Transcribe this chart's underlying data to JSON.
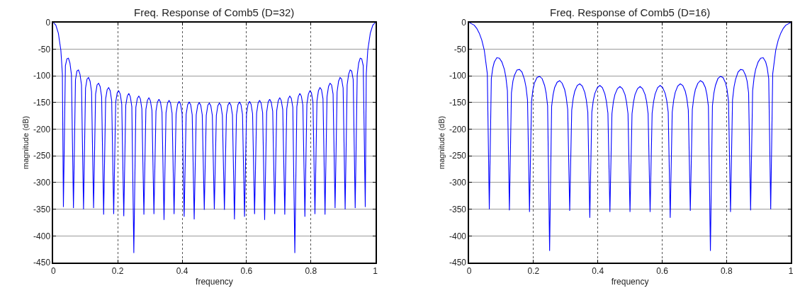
{
  "chart_data": [
    {
      "type": "line",
      "title": "Freq. Response of Comb5 (D=32)",
      "xlabel": "frequency",
      "ylabel": "magnitude (dB)",
      "xlim": [
        0,
        1
      ],
      "xticks": [
        0,
        0.2,
        0.4,
        0.6,
        0.8,
        1
      ],
      "ylim": [
        -450,
        0
      ],
      "yticks": [
        -450,
        -400,
        -350,
        -300,
        -250,
        -200,
        -150,
        -100,
        -50,
        0
      ],
      "grid": true,
      "x": [
        0,
        0.0078,
        0.0156,
        0.0234,
        0.0281,
        0.0313,
        0.0375,
        0.0422,
        0.0469,
        0.0516,
        0.0563,
        0.0625,
        0.0688,
        0.0734,
        0.0781,
        0.0828,
        0.0875,
        0.0938,
        0.1,
        0.1047,
        0.1094,
        0.1141,
        0.1188,
        0.125,
        0.1313,
        0.1359,
        0.1406,
        0.1453,
        0.15,
        0.1563,
        0.1625,
        0.1672,
        0.1719,
        0.1766,
        0.1813,
        0.1875,
        0.1938,
        0.1984,
        0.2031,
        0.2078,
        0.2125,
        0.2188,
        0.225,
        0.2297,
        0.2344,
        0.2391,
        0.2438,
        0.25,
        0.2563,
        0.2609,
        0.2656,
        0.2703,
        0.275,
        0.2813,
        0.2875,
        0.2922,
        0.2969,
        0.3016,
        0.3063,
        0.3125,
        0.3188,
        0.3234,
        0.3281,
        0.3328,
        0.3375,
        0.3438,
        0.35,
        0.3547,
        0.3594,
        0.3641,
        0.3688,
        0.375,
        0.3813,
        0.3859,
        0.3906,
        0.3953,
        0.4,
        0.4063,
        0.4125,
        0.4172,
        0.4219,
        0.4266,
        0.4313,
        0.4375,
        0.4438,
        0.4484,
        0.4531,
        0.4578,
        0.4625,
        0.4688,
        0.475,
        0.4797,
        0.4844,
        0.4891,
        0.4938,
        0.5,
        0.5063,
        0.5109,
        0.5156,
        0.5203,
        0.525,
        0.5313,
        0.5375,
        0.5422,
        0.5469,
        0.5516,
        0.5563,
        0.5625,
        0.5688,
        0.5734,
        0.5781,
        0.5828,
        0.5875,
        0.5938,
        0.6,
        0.6047,
        0.6094,
        0.6141,
        0.6188,
        0.625,
        0.6313,
        0.6359,
        0.6406,
        0.6453,
        0.65,
        0.6563,
        0.6625,
        0.6672,
        0.6719,
        0.6766,
        0.6813,
        0.6875,
        0.6938,
        0.6984,
        0.7031,
        0.7078,
        0.7125,
        0.7188,
        0.725,
        0.7297,
        0.7344,
        0.7391,
        0.7438,
        0.75,
        0.7563,
        0.7609,
        0.7656,
        0.7703,
        0.775,
        0.7813,
        0.7875,
        0.7922,
        0.7969,
        0.8016,
        0.8063,
        0.8125,
        0.8188,
        0.8234,
        0.8281,
        0.8328,
        0.8375,
        0.8438,
        0.85,
        0.8547,
        0.8594,
        0.8641,
        0.8688,
        0.875,
        0.8813,
        0.8859,
        0.8906,
        0.8953,
        0.9,
        0.9063,
        0.9125,
        0.9172,
        0.9219,
        0.9266,
        0.9313,
        0.9375,
        0.9438,
        0.9484,
        0.9531,
        0.9578,
        0.9625,
        0.9688,
        0.9719,
        0.9766,
        0.9844,
        0.9922,
        1
      ],
      "series": [
        {
          "color": "#0000ff",
          "values": [
            0,
            -5,
            -20,
            -52,
            -96,
            -346,
            -81,
            -68,
            -67,
            -76,
            -98,
            -348,
            -107,
            -91,
            -89,
            -97,
            -117,
            -350,
            -123,
            -106,
            -103,
            -110,
            -130,
            -348,
            -134,
            -117,
            -114,
            -120,
            -139,
            -360,
            -143,
            -126,
            -122,
            -128,
            -147,
            -359,
            -149,
            -132,
            -128,
            -134,
            -153,
            -363,
            -155,
            -138,
            -133,
            -139,
            -158,
            -432,
            -159,
            -142,
            -138,
            -143,
            -162,
            -360,
            -163,
            -146,
            -141,
            -147,
            -165,
            -359,
            -166,
            -149,
            -144,
            -149,
            -168,
            -370,
            -169,
            -151,
            -146,
            -151,
            -170,
            -359,
            -171,
            -153,
            -148,
            -153,
            -171,
            -364,
            -172,
            -154,
            -149,
            -154,
            -173,
            -369,
            -173,
            -155,
            -150,
            -155,
            -173,
            -351,
            -174,
            -155,
            -151,
            -156,
            -174,
            -350,
            -174,
            -156,
            -151,
            -155,
            -174,
            -351,
            -173,
            -155,
            -150,
            -155,
            -173,
            -369,
            -173,
            -154,
            -149,
            -154,
            -172,
            -364,
            -171,
            -153,
            -148,
            -153,
            -171,
            -359,
            -170,
            -151,
            -146,
            -151,
            -169,
            -370,
            -168,
            -149,
            -144,
            -149,
            -166,
            -359,
            -165,
            -147,
            -141,
            -146,
            -163,
            -360,
            -162,
            -143,
            -138,
            -142,
            -159,
            -432,
            -158,
            -139,
            -133,
            -138,
            -155,
            -364,
            -153,
            -134,
            -128,
            -132,
            -149,
            -359,
            -147,
            -128,
            -122,
            -126,
            -143,
            -360,
            -139,
            -120,
            -114,
            -117,
            -134,
            -348,
            -130,
            -110,
            -103,
            -106,
            -123,
            -350,
            -117,
            -97,
            -89,
            -91,
            -107,
            -348,
            -98,
            -76,
            -67,
            -68,
            -81,
            -346,
            -96,
            -52,
            -20,
            -5,
            0
          ]
        }
      ]
    },
    {
      "type": "line",
      "title": "Freq. Response of Comb5 (D=16)",
      "xlabel": "frequency",
      "ylabel": "magnitude (dB)",
      "xlim": [
        0,
        1
      ],
      "xticks": [
        0,
        0.2,
        0.4,
        0.6,
        0.8,
        1
      ],
      "ylim": [
        -450,
        0
      ],
      "yticks": [
        -450,
        -400,
        -350,
        -300,
        -250,
        -200,
        -150,
        -100,
        -50,
        0
      ],
      "grid": true,
      "x": [
        0,
        0.0156,
        0.0234,
        0.0313,
        0.0391,
        0.0469,
        0.0563,
        0.0625,
        0.0688,
        0.0734,
        0.0781,
        0.0859,
        0.0938,
        0.1016,
        0.1094,
        0.1141,
        0.1188,
        0.125,
        0.1313,
        0.1359,
        0.1406,
        0.1484,
        0.1563,
        0.1641,
        0.1719,
        0.1766,
        0.1813,
        0.1875,
        0.1938,
        0.1984,
        0.2031,
        0.2109,
        0.2188,
        0.2266,
        0.2344,
        0.2391,
        0.2438,
        0.25,
        0.2563,
        0.2609,
        0.2656,
        0.2734,
        0.2813,
        0.2891,
        0.2969,
        0.3016,
        0.3063,
        0.3125,
        0.3188,
        0.3234,
        0.3281,
        0.3359,
        0.3438,
        0.3516,
        0.3594,
        0.3641,
        0.3688,
        0.375,
        0.3813,
        0.3859,
        0.3906,
        0.3984,
        0.4063,
        0.4141,
        0.4219,
        0.4266,
        0.4313,
        0.4375,
        0.4438,
        0.4484,
        0.4531,
        0.4609,
        0.4688,
        0.4766,
        0.4844,
        0.4891,
        0.4938,
        0.5,
        0.5063,
        0.5109,
        0.5156,
        0.5234,
        0.5313,
        0.5391,
        0.5469,
        0.5516,
        0.5563,
        0.5625,
        0.5688,
        0.5734,
        0.5781,
        0.5859,
        0.5938,
        0.6016,
        0.6094,
        0.6141,
        0.6188,
        0.625,
        0.6313,
        0.6359,
        0.6406,
        0.6484,
        0.6563,
        0.6641,
        0.6719,
        0.6766,
        0.6813,
        0.6875,
        0.6938,
        0.6984,
        0.7031,
        0.7109,
        0.7188,
        0.7266,
        0.7344,
        0.7391,
        0.7438,
        0.75,
        0.7563,
        0.7609,
        0.7656,
        0.7734,
        0.7813,
        0.7891,
        0.7969,
        0.8016,
        0.8063,
        0.8125,
        0.8188,
        0.8234,
        0.8281,
        0.8359,
        0.8438,
        0.8516,
        0.8594,
        0.8641,
        0.8688,
        0.875,
        0.8813,
        0.8859,
        0.8906,
        0.8984,
        0.9063,
        0.9141,
        0.9219,
        0.9266,
        0.9313,
        0.9375,
        0.9438,
        0.9531,
        0.9609,
        0.9688,
        0.9766,
        0.9844,
        1
      ],
      "series": [
        {
          "color": "#0000ff",
          "values": [
            0,
            -5,
            -11,
            -20,
            -33,
            -52,
            -96,
            -350,
            -105,
            -85,
            -74,
            -66,
            -67,
            -74,
            -88,
            -103,
            -128,
            -352,
            -132,
            -110,
            -99,
            -89,
            -88,
            -93,
            -107,
            -121,
            -145,
            -355,
            -147,
            -125,
            -113,
            -103,
            -101,
            -105,
            -118,
            -132,
            -156,
            -428,
            -157,
            -135,
            -122,
            -112,
            -109,
            -114,
            -126,
            -140,
            -163,
            -353,
            -164,
            -142,
            -129,
            -118,
            -115,
            -119,
            -131,
            -145,
            -168,
            -366,
            -168,
            -146,
            -133,
            -122,
            -118,
            -122,
            -134,
            -148,
            -170,
            -355,
            -171,
            -148,
            -135,
            -124,
            -120,
            -124,
            -135,
            -149,
            -171,
            -355,
            -171,
            -149,
            -135,
            -124,
            -120,
            -124,
            -135,
            -148,
            -171,
            -355,
            -170,
            -148,
            -134,
            -122,
            -118,
            -122,
            -133,
            -146,
            -168,
            -366,
            -168,
            -145,
            -131,
            -119,
            -115,
            -118,
            -129,
            -142,
            -164,
            -353,
            -163,
            -140,
            -126,
            -114,
            -109,
            -112,
            -122,
            -135,
            -157,
            -428,
            -156,
            -132,
            -118,
            -105,
            -101,
            -103,
            -113,
            -125,
            -147,
            -355,
            -145,
            -121,
            -107,
            -93,
            -88,
            -89,
            -99,
            -110,
            -132,
            -352,
            -128,
            -103,
            -88,
            -74,
            -67,
            -66,
            -74,
            -85,
            -105,
            -350,
            -96,
            -52,
            -33,
            -20,
            -11,
            -5,
            0
          ]
        }
      ]
    }
  ]
}
